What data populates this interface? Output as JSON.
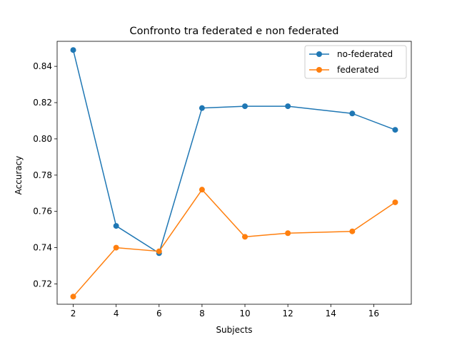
{
  "chart_data": {
    "type": "line",
    "title": "Confronto tra federated e non federated",
    "xlabel": "Subjects",
    "ylabel": "Accuracy",
    "x": [
      2,
      4,
      6,
      8,
      10,
      12,
      15,
      17
    ],
    "xticks": [
      2,
      4,
      6,
      8,
      10,
      12,
      14,
      16
    ],
    "yticks": [
      0.72,
      0.74,
      0.76,
      0.78,
      0.8,
      0.82,
      0.84
    ],
    "xlim": [
      1.25,
      17.75
    ],
    "ylim": [
      0.7088,
      0.8538
    ],
    "legend_position": "top-right",
    "series": [
      {
        "name": "no-federated",
        "color": "#1f77b4",
        "values": [
          0.849,
          0.752,
          0.737,
          0.817,
          0.818,
          0.818,
          0.814,
          0.805
        ]
      },
      {
        "name": "federated",
        "color": "#ff7f0e",
        "values": [
          0.713,
          0.74,
          0.738,
          0.772,
          0.746,
          0.748,
          0.749,
          0.765
        ]
      }
    ]
  }
}
